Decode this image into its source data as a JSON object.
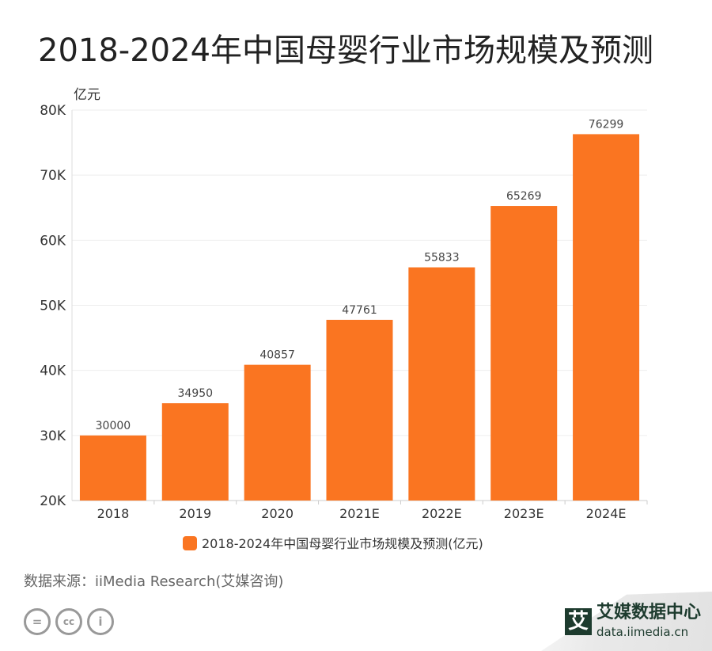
{
  "title": "2018-2024年中国母婴行业市场规模及预测",
  "source": "数据来源：iiMedia Research(艾媒咨询)",
  "brand": {
    "name": "艾媒数据中心",
    "url": "data.iimedia.cn",
    "mark": "艾"
  },
  "license_icons": [
    "equals-icon",
    "cc-icon",
    "person-icon"
  ],
  "chart_data": {
    "type": "bar",
    "title": "2018-2024年中国母婴行业市场规模及预测",
    "ylabel": "亿元",
    "categories": [
      "2018",
      "2019",
      "2020",
      "2021E",
      "2022E",
      "2023E",
      "2024E"
    ],
    "series": [
      {
        "name": "2018-2024年中国母婴行业市场规模及预测(亿元)",
        "values": [
          30000,
          34950,
          40857,
          47761,
          55833,
          65269,
          76299
        ]
      }
    ],
    "ylim": [
      20000,
      80000
    ],
    "yticks": [
      20000,
      30000,
      40000,
      50000,
      60000,
      70000,
      80000
    ],
    "ytick_labels": [
      "20K",
      "30K",
      "40K",
      "50K",
      "60K",
      "70K",
      "80K"
    ],
    "grid": true,
    "legend": "bottom",
    "color": "#FA7521"
  }
}
